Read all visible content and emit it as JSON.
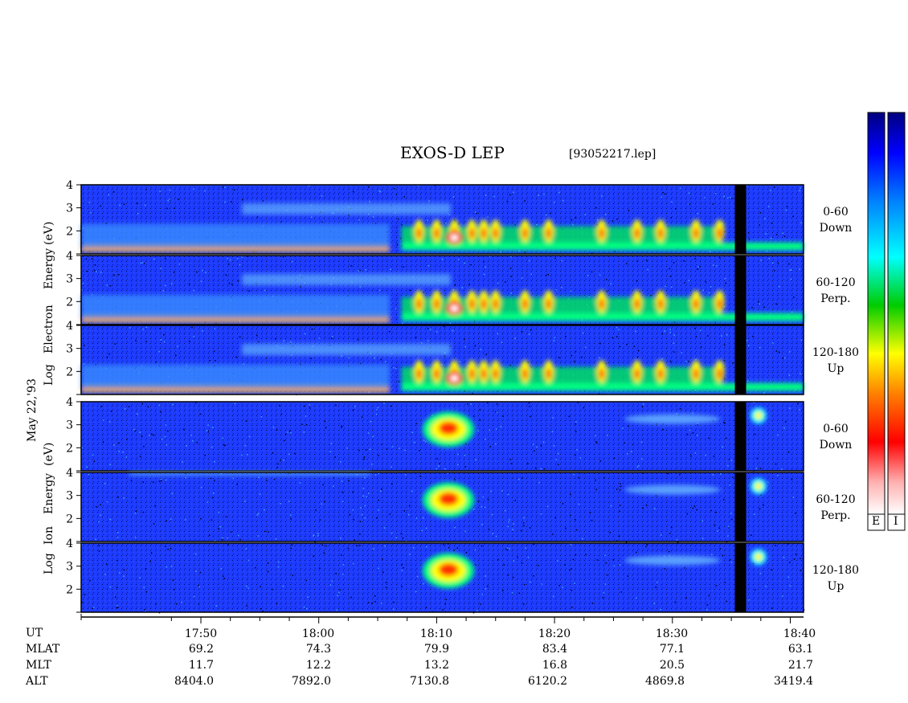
{
  "header": {
    "title": "EXOS-D LEP",
    "file": "[93052217.lep]"
  },
  "left_labels": {
    "electron": [
      "Energy",
      "Electron",
      "Log"
    ],
    "electron_unit": "(eV)",
    "date": "May 22,'93",
    "ion": [
      "Energy",
      "Ion",
      "Log"
    ],
    "ion_unit": "(eV)"
  },
  "panels": [
    {
      "species": "electron",
      "pitch": "0-60",
      "dir": "Down"
    },
    {
      "species": "electron",
      "pitch": "60-120",
      "dir": "Perp."
    },
    {
      "species": "electron",
      "pitch": "120-180",
      "dir": "Up"
    },
    {
      "species": "ion",
      "pitch": "0-60",
      "dir": "Down"
    },
    {
      "species": "ion",
      "pitch": "60-120",
      "dir": "Perp."
    },
    {
      "species": "ion",
      "pitch": "120-180",
      "dir": "Up"
    }
  ],
  "colorbars": {
    "electron_label": "E",
    "ion_label": "I"
  },
  "colors": {
    "background": "#1a33ff",
    "cmap": [
      "#ffffff",
      "#ff8080",
      "#ff0000",
      "#ff7f00",
      "#ffff00",
      "#00ff00",
      "#00ffff",
      "#0080ff",
      "#0000ff",
      "#000080"
    ]
  },
  "chart_data": {
    "type": "heatmap",
    "title": "EXOS-D LEP",
    "ylabel": "Log Energy (eV)",
    "y_ticks": [
      "1",
      "2",
      "3",
      "4"
    ],
    "ylim": [
      1,
      4
    ],
    "x_ticks": [
      "17:50",
      "18:00",
      "18:10",
      "18:20",
      "18:30",
      "18:40"
    ],
    "ephemeris": {
      "labels": [
        "UT",
        "MLAT",
        "MLT",
        "ALT"
      ],
      "MLAT": [
        "69.2",
        "74.3",
        "79.9",
        "83.4",
        "77.1",
        "63.1"
      ],
      "MLT": [
        "11.7",
        "12.2",
        "13.2",
        "16.8",
        "20.5",
        "21.7"
      ],
      "ALT": [
        "8404.0",
        "7892.0",
        "7130.8",
        "6120.2",
        "4869.8",
        "3419.4"
      ]
    },
    "data_gap_ut": [
      "18:35",
      "18:36"
    ]
  }
}
